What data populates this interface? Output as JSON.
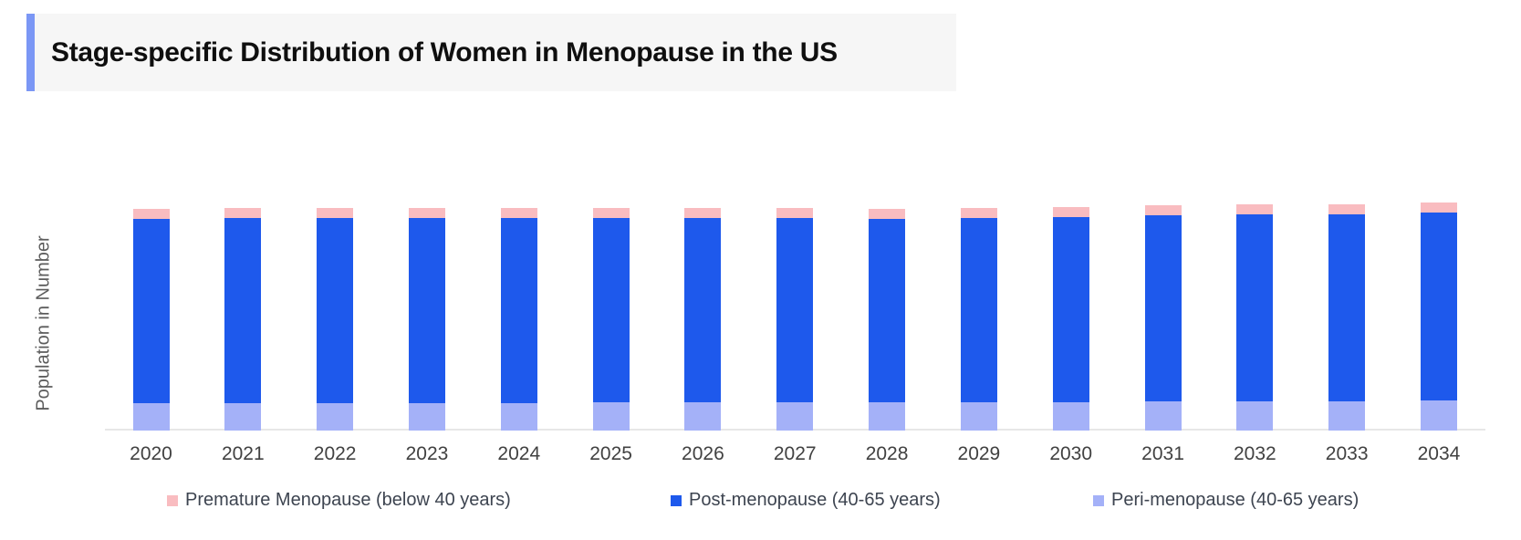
{
  "header": {
    "title": "Stage-specific Distribution of Women in Menopause in the US"
  },
  "chart": {
    "ylabel": "Population in Number",
    "legend_items": [
      {
        "label": "Premature Menopause (below 40 years)",
        "color": "#f9bcc0"
      },
      {
        "label": "Post-menopause (40-65 years)",
        "color": "#1e59ec"
      },
      {
        "label": "Peri-menopause (40-65 years)",
        "color": "#a4b1f8"
      }
    ]
  },
  "colors": {
    "post_menopause_blue": "#1e59ec",
    "peri_menopause_periwinkle": "#a4b1f8",
    "premature_pink": "#f9bcc0",
    "title_accent": "#7b97f5",
    "title_panel_bg": "#f6f6f6",
    "axis_line": "#e7e7e7",
    "tick_text": "#414141",
    "legend_text": "#3d4450"
  },
  "chart_data": {
    "type": "bar",
    "stacked": true,
    "title": "Stage-specific Distribution of Women in Menopause in the US",
    "xlabel": "",
    "ylabel": "Population in Number",
    "y_axis_tick_labels": "none shown",
    "value_unit": "relative height units (chart displays no numeric y-axis scale)",
    "legend_position": "bottom",
    "grid": false,
    "categories": [
      "2020",
      "2021",
      "2022",
      "2023",
      "2024",
      "2025",
      "2026",
      "2027",
      "2028",
      "2029",
      "2030",
      "2031",
      "2032",
      "2033",
      "2034"
    ],
    "series": [
      {
        "name": "Peri-menopause (40-65 years)",
        "stack_order": "bottom",
        "color": "#a4b1f8",
        "values": [
          30,
          30,
          30,
          30,
          30,
          31,
          31,
          31,
          31,
          31,
          31,
          32,
          32,
          32,
          33
        ]
      },
      {
        "name": "Post-menopause (40-65 years)",
        "stack_order": "middle",
        "color": "#1e59ec",
        "values": [
          202,
          203,
          203,
          203,
          203,
          202,
          202,
          202,
          201,
          202,
          203,
          204,
          205,
          205,
          206
        ]
      },
      {
        "name": "Premature Menopause (below 40 years)",
        "stack_order": "top",
        "color": "#f9bcc0",
        "values": [
          11,
          11,
          11,
          11,
          11,
          11,
          11,
          11,
          11,
          11,
          11,
          11,
          11,
          11,
          11
        ]
      }
    ]
  }
}
